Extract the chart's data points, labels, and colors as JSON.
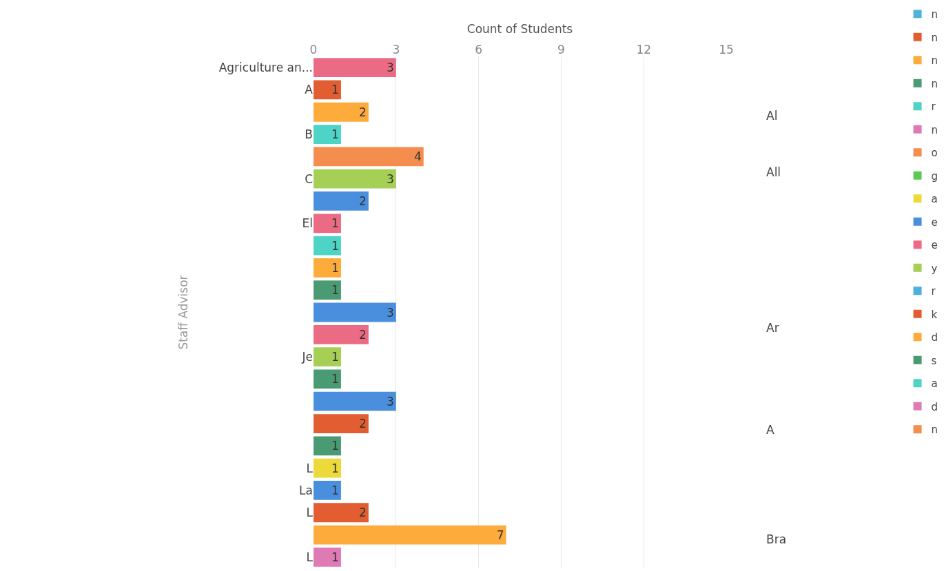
{
  "chart_data": {
    "type": "bar",
    "orientation": "horizontal",
    "xlabel": "Count of Students",
    "ylabel": "Staff Advisor",
    "categories": [
      "Agriculture an...",
      "A",
      null,
      "B",
      null,
      "C",
      null,
      "El",
      null,
      null,
      null,
      null,
      null,
      "Je",
      null,
      null,
      null,
      null,
      "L",
      "La",
      "L",
      null,
      "L"
    ],
    "series": [
      {
        "name": "n",
        "color": "#4fb3d9",
        "values": [
          null,
          null,
          null,
          null,
          null,
          null,
          null,
          null,
          null,
          null,
          null,
          null,
          null,
          null,
          null,
          null,
          null,
          null,
          null,
          null,
          null,
          null,
          null
        ]
      },
      {
        "name": "n",
        "color": "#e35d32",
        "values": [
          null,
          1,
          null,
          null,
          null,
          null,
          null,
          null,
          null,
          null,
          null,
          null,
          null,
          null,
          null,
          null,
          2,
          null,
          null,
          null,
          2,
          null,
          null
        ]
      },
      {
        "name": "n",
        "color": "#fdab3a",
        "values": [
          null,
          null,
          2,
          null,
          null,
          null,
          null,
          null,
          null,
          1,
          null,
          null,
          null,
          null,
          null,
          null,
          null,
          null,
          null,
          null,
          null,
          7,
          null
        ]
      },
      {
        "name": "n",
        "color": "#4a9a73",
        "values": [
          null,
          null,
          null,
          null,
          null,
          null,
          null,
          null,
          null,
          null,
          1,
          null,
          null,
          null,
          1,
          null,
          null,
          1,
          null,
          null,
          null,
          null,
          null
        ]
      },
      {
        "name": "r",
        "color": "#4dd4c6",
        "values": [
          null,
          null,
          null,
          1,
          null,
          null,
          null,
          null,
          1,
          null,
          null,
          null,
          null,
          null,
          null,
          null,
          null,
          null,
          null,
          null,
          null,
          null,
          null
        ]
      },
      {
        "name": "n",
        "color": "#e07ab6",
        "values": [
          null,
          null,
          null,
          null,
          null,
          null,
          null,
          null,
          null,
          null,
          null,
          null,
          null,
          null,
          null,
          null,
          null,
          null,
          null,
          null,
          null,
          null,
          1
        ]
      },
      {
        "name": "o",
        "color": "#f58d4e",
        "values": [
          null,
          null,
          null,
          null,
          4,
          null,
          null,
          null,
          null,
          null,
          null,
          null,
          null,
          null,
          null,
          null,
          null,
          null,
          null,
          null,
          null,
          null,
          null
        ]
      },
      {
        "name": "g",
        "color": "#5fc955",
        "values": [
          null,
          null,
          null,
          null,
          null,
          null,
          null,
          null,
          null,
          null,
          null,
          null,
          null,
          null,
          null,
          null,
          null,
          null,
          null,
          null,
          null,
          null,
          null
        ]
      },
      {
        "name": "a",
        "color": "#ecd93a",
        "values": [
          null,
          null,
          null,
          null,
          null,
          null,
          null,
          null,
          null,
          null,
          null,
          null,
          null,
          null,
          null,
          null,
          null,
          null,
          1,
          null,
          null,
          null,
          null
        ]
      },
      {
        "name": "e",
        "color": "#4a8fde",
        "values": [
          null,
          null,
          null,
          null,
          null,
          null,
          2,
          null,
          null,
          null,
          null,
          3,
          null,
          null,
          null,
          3,
          null,
          null,
          null,
          1,
          null,
          null,
          null
        ]
      },
      {
        "name": "e",
        "color": "#ec6b84",
        "values": [
          3,
          null,
          null,
          null,
          null,
          null,
          null,
          1,
          null,
          null,
          null,
          null,
          2,
          null,
          null,
          null,
          null,
          null,
          null,
          null,
          null,
          null,
          null
        ]
      },
      {
        "name": "y",
        "color": "#a5cf55",
        "values": [
          null,
          null,
          null,
          null,
          null,
          3,
          null,
          null,
          null,
          null,
          null,
          null,
          null,
          1,
          null,
          null,
          null,
          null,
          null,
          null,
          null,
          null,
          null
        ]
      },
      {
        "name": "r",
        "color": "#4ab1dc",
        "values": [
          null,
          null,
          null,
          null,
          null,
          null,
          null,
          null,
          null,
          null,
          null,
          null,
          null,
          null,
          null,
          null,
          null,
          null,
          null,
          null,
          null,
          null,
          null
        ]
      },
      {
        "name": "k",
        "color": "#e35d32",
        "values": [
          null,
          null,
          null,
          null,
          null,
          null,
          null,
          null,
          null,
          null,
          null,
          null,
          null,
          null,
          null,
          null,
          null,
          null,
          null,
          null,
          null,
          null,
          null
        ]
      },
      {
        "name": "d",
        "color": "#fdab3a",
        "values": [
          null,
          null,
          null,
          null,
          null,
          null,
          null,
          null,
          null,
          null,
          null,
          null,
          null,
          null,
          null,
          null,
          null,
          null,
          null,
          null,
          null,
          null,
          null
        ]
      },
      {
        "name": "s",
        "color": "#4a9a73",
        "values": [
          null,
          null,
          null,
          null,
          null,
          null,
          null,
          null,
          null,
          null,
          null,
          null,
          null,
          null,
          null,
          null,
          null,
          null,
          null,
          null,
          null,
          null,
          null
        ]
      },
      {
        "name": "a",
        "color": "#4dd4c6",
        "values": [
          null,
          null,
          null,
          null,
          null,
          null,
          null,
          null,
          null,
          null,
          null,
          null,
          null,
          null,
          null,
          null,
          null,
          null,
          null,
          null,
          null,
          null,
          null
        ]
      },
      {
        "name": "d",
        "color": "#e07ab6",
        "values": [
          null,
          null,
          null,
          null,
          null,
          null,
          null,
          null,
          null,
          null,
          null,
          null,
          null,
          null,
          null,
          null,
          null,
          null,
          null,
          null,
          null,
          null,
          null
        ]
      },
      {
        "name": "n",
        "color": "#f58d4e",
        "values": [
          null,
          null,
          null,
          null,
          null,
          null,
          null,
          null,
          null,
          null,
          null,
          null,
          null,
          null,
          null,
          null,
          null,
          null,
          null,
          null,
          null,
          null,
          null
        ]
      }
    ],
    "annotations": [
      "Al",
      "All",
      "Ar",
      "A",
      "Bra"
    ],
    "xlim": [
      0,
      15
    ],
    "xticks": [
      0,
      3,
      6,
      9,
      12,
      15
    ],
    "grid": "x",
    "legend": "right",
    "data_labels": true
  }
}
